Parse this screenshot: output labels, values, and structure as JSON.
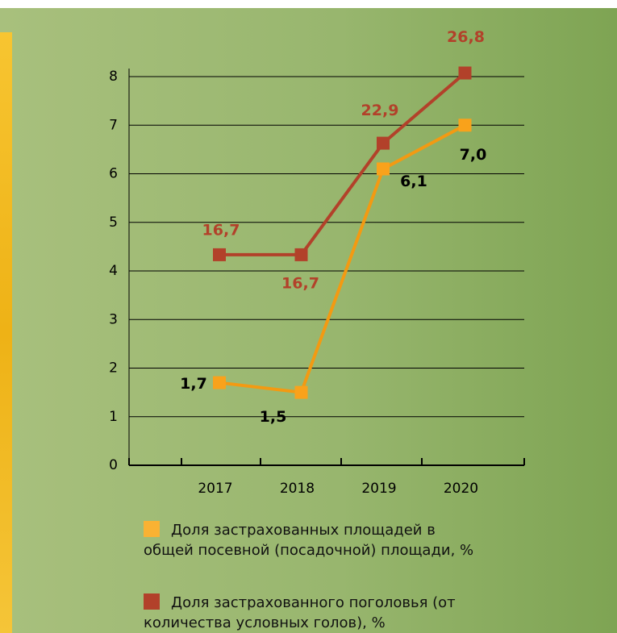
{
  "chart_data": {
    "type": "line",
    "categories": [
      "2017",
      "2018",
      "2019",
      "2020"
    ],
    "series": [
      {
        "name": "Доля застрахованных площадей в общей посевной (посадочной) площади, %",
        "color": "#f39a12",
        "values": [
          1.7,
          1.5,
          6.1,
          7.0
        ],
        "value_labels": [
          "1,7",
          "1,5",
          "6,1",
          "7,0"
        ]
      },
      {
        "name": "Доля застрахованного поголовья (от количества условных голов), %",
        "color": "#b2412a",
        "axis": "y2",
        "values": [
          16.7,
          16.7,
          22.9,
          26.8
        ],
        "value_labels": [
          "16,7",
          "16,7",
          "22,9",
          "26,8"
        ]
      }
    ],
    "ylim": [
      0,
      8
    ],
    "yticks": [
      0,
      1,
      2,
      3,
      4,
      5,
      6,
      7,
      8
    ],
    "y2lim": [
      5,
      26.6
    ],
    "grid": true
  }
}
